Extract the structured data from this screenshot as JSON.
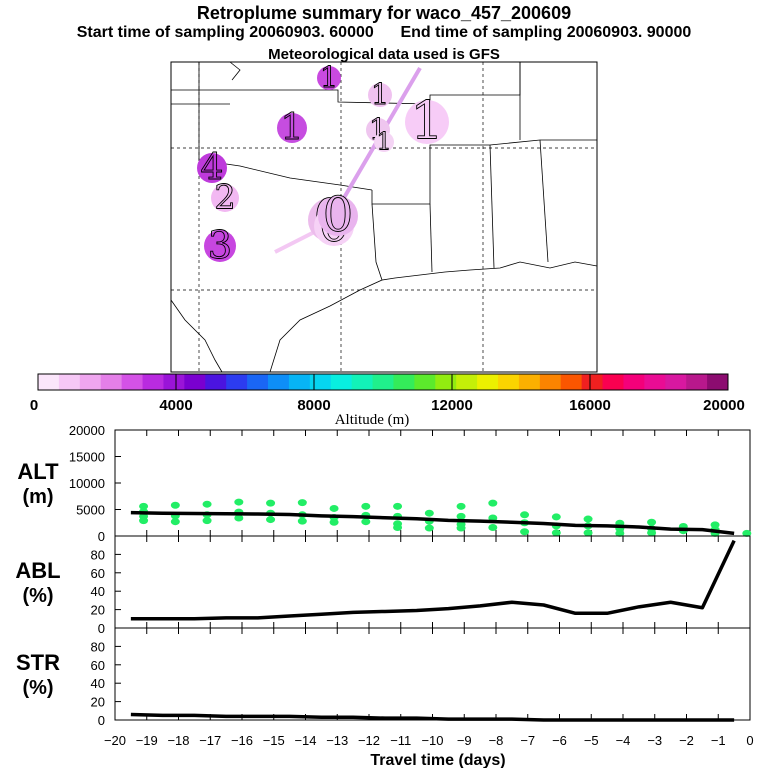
{
  "header": {
    "title": "Retroplume summary for waco_457_200609",
    "start_label": "Start time of sampling 20060903. 60000",
    "end_label": "End time of sampling 20060903. 90000",
    "met_label": "Meteorological data used is GFS"
  },
  "colors": {
    "plume_light": "#f2b8f2",
    "plume_mid": "#c84ae0",
    "point_green": "#22ee66",
    "line": "#000000"
  },
  "colorbar": {
    "ticks": [
      "0",
      "4000",
      "8000",
      "12000",
      "16000",
      "20000"
    ],
    "label": "Altitude (m)",
    "range": [
      0,
      20000
    ],
    "colors": [
      "#fbe6fb",
      "#f6c8f6",
      "#efa6ef",
      "#e47fe8",
      "#d452e6",
      "#b92be0",
      "#9a14d8",
      "#7a00d0",
      "#4b14e0",
      "#2c3cf0",
      "#1a66f5",
      "#0e8ef7",
      "#07b4f5",
      "#06d6f0",
      "#08efe0",
      "#12f3b8",
      "#20f08c",
      "#34ec5a",
      "#5cea2c",
      "#92ec10",
      "#c4ef08",
      "#ecf000",
      "#fbd400",
      "#fcb000",
      "#fc8400",
      "#fb5600",
      "#f02020",
      "#fa0050",
      "#f4007a",
      "#ea0c94",
      "#d818a0",
      "#b8188c",
      "#8c0c70"
    ]
  },
  "map": {
    "markers": [
      {
        "label": "1",
        "color": "#c94ae0"
      },
      {
        "label": "1",
        "color": "#f0c2f0"
      },
      {
        "label": "1",
        "color": "#f7ccf7"
      },
      {
        "label": "1",
        "color": "#c64de0"
      },
      {
        "label": "1",
        "color": "#efc6ef"
      },
      {
        "label": "1",
        "color": "#f4d4f4"
      },
      {
        "label": "4",
        "color": "#be3adb"
      },
      {
        "label": "2",
        "color": "#f2b8f2"
      },
      {
        "label": "3",
        "color": "#c746e0"
      },
      {
        "label": "0",
        "color": "#ecbcec"
      },
      {
        "label": "0",
        "color": "#f6d2f6"
      },
      {
        "label": "0",
        "color": "#e9b4ee"
      }
    ]
  },
  "chart_data": [
    {
      "type": "line",
      "panel": "ALT",
      "ylabel_lines": [
        "ALT",
        "(m)"
      ],
      "ylim": [
        0,
        20000
      ],
      "yticks": [
        0,
        5000,
        10000,
        15000,
        20000
      ],
      "x": [
        -19.5,
        -18.5,
        -17.5,
        -16.5,
        -15.5,
        -14.5,
        -13.5,
        -12.5,
        -11.5,
        -10.5,
        -9.5,
        -8.5,
        -7.5,
        -6.5,
        -5.5,
        -4.5,
        -3.5,
        -2.5,
        -1.5,
        -0.5
      ],
      "values": [
        4400,
        4300,
        4250,
        4200,
        4150,
        4050,
        3800,
        3650,
        3450,
        3250,
        2950,
        2800,
        2600,
        2350,
        2000,
        1900,
        1700,
        1300,
        1200,
        500
      ],
      "points": [
        {
          "x": -19.1,
          "y": 5600
        },
        {
          "x": -19.1,
          "y": 4600
        },
        {
          "x": -19.1,
          "y": 3700
        },
        {
          "x": -19.1,
          "y": 2900
        },
        {
          "x": -18.1,
          "y": 5800
        },
        {
          "x": -18.1,
          "y": 3800
        },
        {
          "x": -18.1,
          "y": 2700
        },
        {
          "x": -17.1,
          "y": 6000
        },
        {
          "x": -17.1,
          "y": 4000
        },
        {
          "x": -17.1,
          "y": 2900
        },
        {
          "x": -16.1,
          "y": 6400
        },
        {
          "x": -16.1,
          "y": 4500
        },
        {
          "x": -16.1,
          "y": 3400
        },
        {
          "x": -15.1,
          "y": 6200
        },
        {
          "x": -15.1,
          "y": 4300
        },
        {
          "x": -15.1,
          "y": 3100
        },
        {
          "x": -14.1,
          "y": 6300
        },
        {
          "x": -14.1,
          "y": 4000
        },
        {
          "x": -14.1,
          "y": 2800
        },
        {
          "x": -13.1,
          "y": 5200
        },
        {
          "x": -13.1,
          "y": 3500
        },
        {
          "x": -13.1,
          "y": 2600
        },
        {
          "x": -12.1,
          "y": 5600
        },
        {
          "x": -12.1,
          "y": 3900
        },
        {
          "x": -12.1,
          "y": 2700
        },
        {
          "x": -11.1,
          "y": 5600
        },
        {
          "x": -11.1,
          "y": 3700
        },
        {
          "x": -11.1,
          "y": 2300
        },
        {
          "x": -11.1,
          "y": 1600
        },
        {
          "x": -10.1,
          "y": 4300
        },
        {
          "x": -10.1,
          "y": 2800
        },
        {
          "x": -10.1,
          "y": 1500
        },
        {
          "x": -9.1,
          "y": 5600
        },
        {
          "x": -9.1,
          "y": 3700
        },
        {
          "x": -9.1,
          "y": 2200
        },
        {
          "x": -9.1,
          "y": 1500
        },
        {
          "x": -8.1,
          "y": 6200
        },
        {
          "x": -8.1,
          "y": 3400
        },
        {
          "x": -8.1,
          "y": 1600
        },
        {
          "x": -7.1,
          "y": 4000
        },
        {
          "x": -7.1,
          "y": 2500
        },
        {
          "x": -7.1,
          "y": 800
        },
        {
          "x": -6.1,
          "y": 3600
        },
        {
          "x": -6.1,
          "y": 1900
        },
        {
          "x": -6.1,
          "y": 600
        },
        {
          "x": -5.1,
          "y": 3200
        },
        {
          "x": -5.1,
          "y": 1900
        },
        {
          "x": -5.1,
          "y": 600
        },
        {
          "x": -4.1,
          "y": 2400
        },
        {
          "x": -4.1,
          "y": 1400
        },
        {
          "x": -4.1,
          "y": 500
        },
        {
          "x": -3.1,
          "y": 2600
        },
        {
          "x": -3.1,
          "y": 1400
        },
        {
          "x": -3.1,
          "y": 600
        },
        {
          "x": -2.1,
          "y": 1800
        },
        {
          "x": -2.1,
          "y": 1000
        },
        {
          "x": -1.1,
          "y": 2100
        },
        {
          "x": -1.1,
          "y": 1200
        },
        {
          "x": -1.1,
          "y": 500
        },
        {
          "x": -0.1,
          "y": 500
        }
      ]
    },
    {
      "type": "line",
      "panel": "ABL",
      "ylabel_lines": [
        "ABL",
        "(%)"
      ],
      "ylim": [
        0,
        100
      ],
      "yticks": [
        0,
        20,
        40,
        60,
        80
      ],
      "x": [
        -19.5,
        -18.5,
        -17.5,
        -16.5,
        -15.5,
        -14.5,
        -13.5,
        -12.5,
        -11.5,
        -10.5,
        -9.5,
        -8.5,
        -7.5,
        -6.5,
        -5.5,
        -4.5,
        -3.5,
        -2.5,
        -1.5,
        -0.5
      ],
      "values": [
        10,
        10,
        10,
        11,
        11,
        13,
        15,
        17,
        18,
        19,
        21,
        24,
        28,
        25,
        16,
        16,
        23,
        28,
        22,
        95
      ]
    },
    {
      "type": "line",
      "panel": "STR",
      "ylabel_lines": [
        "STR",
        "(%)"
      ],
      "ylim": [
        0,
        100
      ],
      "yticks": [
        0,
        20,
        40,
        60,
        80
      ],
      "x": [
        -19.5,
        -18.5,
        -17.5,
        -16.5,
        -15.5,
        -14.5,
        -13.5,
        -12.5,
        -11.5,
        -10.5,
        -9.5,
        -8.5,
        -7.5,
        -6.5,
        -5.5,
        -4.5,
        -3.5,
        -2.5,
        -1.5,
        -0.5
      ],
      "values": [
        6,
        5,
        5,
        4,
        4,
        4,
        3,
        3,
        2,
        2,
        1,
        1,
        1,
        0,
        0,
        0,
        0,
        0,
        0,
        0
      ],
      "xlabel": "Travel time (days)",
      "xticks": [
        -20,
        -19,
        -18,
        -17,
        -16,
        -15,
        -14,
        -13,
        -12,
        -11,
        -10,
        -9,
        -8,
        -7,
        -6,
        -5,
        -4,
        -3,
        -2,
        -1,
        0
      ]
    }
  ]
}
